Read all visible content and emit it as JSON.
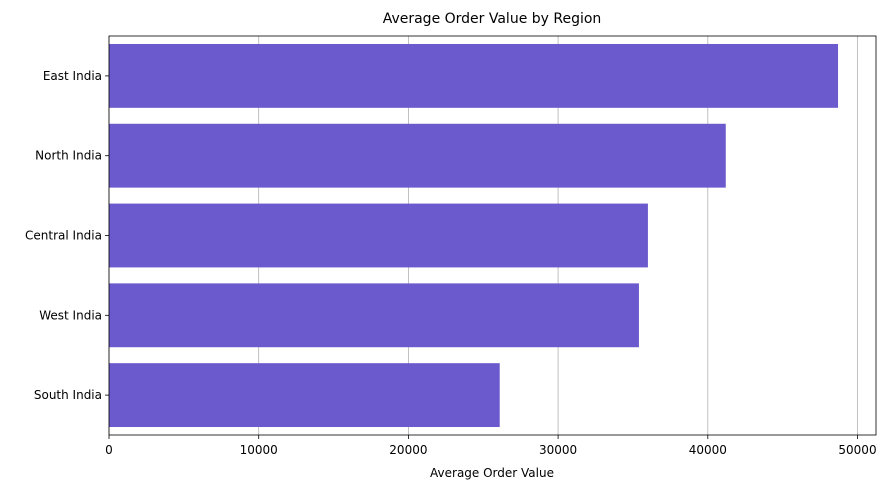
{
  "chart_data": {
    "type": "bar",
    "orientation": "horizontal",
    "title": "Average Order Value by Region",
    "xlabel": "Average Order Value",
    "ylabel": "",
    "categories": [
      "East India",
      "North India",
      "Central India",
      "West India",
      "South India"
    ],
    "values": [
      48700,
      41200,
      36000,
      35400,
      26100
    ],
    "xlim": [
      0,
      50000
    ],
    "xticks": [
      0,
      10000,
      20000,
      30000,
      40000,
      50000
    ],
    "xtick_labels": [
      "0",
      "10000",
      "20000",
      "30000",
      "40000",
      "50000"
    ],
    "grid": "x-major",
    "legend": "none",
    "colors": {
      "bar": "#6a5acd",
      "grid": "#b0b0b0",
      "axis": "#000000"
    }
  }
}
